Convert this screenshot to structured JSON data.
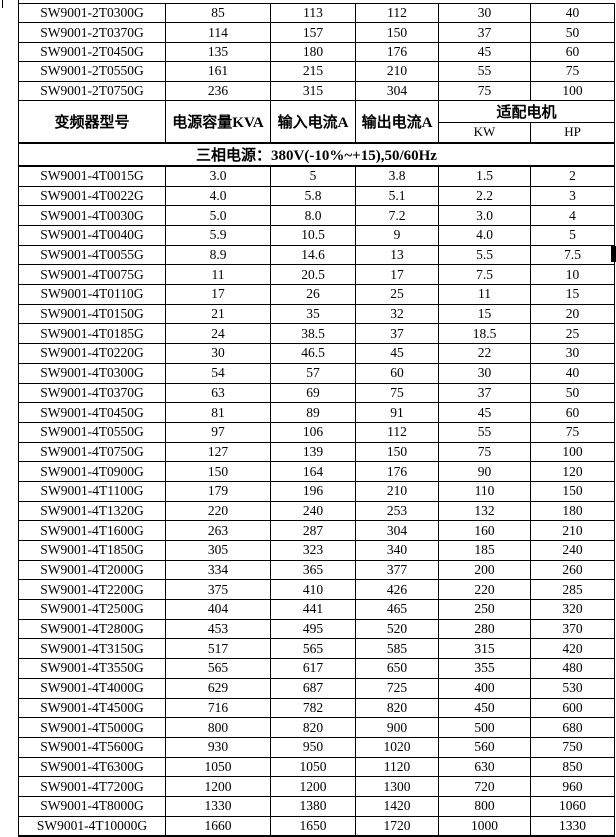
{
  "page": {
    "background_color": "#ffffff",
    "border_color": "#000000",
    "text_color": "#000000"
  },
  "table": {
    "header": {
      "model": "变频器型号",
      "capacity": "电源容量KVA",
      "input": "输入电流A",
      "output": "输出电流A",
      "motor": "适配电机",
      "kw": "KW",
      "hp": "HP"
    },
    "section_title": "三相电源：380V(-10%~+15),50/60Hz",
    "rows_2t": [
      [
        "SW9001-2T0300G",
        "85",
        "113",
        "112",
        "30",
        "40"
      ],
      [
        "SW9001-2T0370G",
        "114",
        "157",
        "150",
        "37",
        "50"
      ],
      [
        "SW9001-2T0450G",
        "135",
        "180",
        "176",
        "45",
        "60"
      ],
      [
        "SW9001-2T0550G",
        "161",
        "215",
        "210",
        "55",
        "75"
      ],
      [
        "SW9001-2T0750G",
        "236",
        "315",
        "304",
        "75",
        "100"
      ]
    ],
    "rows_4t": [
      [
        "SW9001-4T0015G",
        "3.0",
        "5",
        "3.8",
        "1.5",
        "2"
      ],
      [
        "SW9001-4T0022G",
        "4.0",
        "5.8",
        "5.1",
        "2.2",
        "3"
      ],
      [
        "SW9001-4T0030G",
        "5.0",
        "8.0",
        "7.2",
        "3.0",
        "4"
      ],
      [
        "SW9001-4T0040G",
        "5.9",
        "10.5",
        "9",
        "4.0",
        "5"
      ],
      [
        "SW9001-4T0055G",
        "8.9",
        "14.6",
        "13",
        "5.5",
        "7.5"
      ],
      [
        "SW9001-4T0075G",
        "11",
        "20.5",
        "17",
        "7.5",
        "10"
      ],
      [
        "SW9001-4T0110G",
        "17",
        "26",
        "25",
        "11",
        "15"
      ],
      [
        "SW9001-4T0150G",
        "21",
        "35",
        "32",
        "15",
        "20"
      ],
      [
        "SW9001-4T0185G",
        "24",
        "38.5",
        "37",
        "18.5",
        "25"
      ],
      [
        "SW9001-4T0220G",
        "30",
        "46.5",
        "45",
        "22",
        "30"
      ],
      [
        "SW9001-4T0300G",
        "54",
        "57",
        "60",
        "30",
        "40"
      ],
      [
        "SW9001-4T0370G",
        "63",
        "69",
        "75",
        "37",
        "50"
      ],
      [
        "SW9001-4T0450G",
        "81",
        "89",
        "91",
        "45",
        "60"
      ],
      [
        "SW9001-4T0550G",
        "97",
        "106",
        "112",
        "55",
        "75"
      ],
      [
        "SW9001-4T0750G",
        "127",
        "139",
        "150",
        "75",
        "100"
      ],
      [
        "SW9001-4T0900G",
        "150",
        "164",
        "176",
        "90",
        "120"
      ],
      [
        "SW9001-4T1100G",
        "179",
        "196",
        "210",
        "110",
        "150"
      ],
      [
        "SW9001-4T1320G",
        "220",
        "240",
        "253",
        "132",
        "180"
      ],
      [
        "SW9001-4T1600G",
        "263",
        "287",
        "304",
        "160",
        "210"
      ],
      [
        "SW9001-4T1850G",
        "305",
        "323",
        "340",
        "185",
        "240"
      ],
      [
        "SW9001-4T2000G",
        "334",
        "365",
        "377",
        "200",
        "260"
      ],
      [
        "SW9001-4T2200G",
        "375",
        "410",
        "426",
        "220",
        "285"
      ],
      [
        "SW9001-4T2500G",
        "404",
        "441",
        "465",
        "250",
        "320"
      ],
      [
        "SW9001-4T2800G",
        "453",
        "495",
        "520",
        "280",
        "370"
      ],
      [
        "SW9001-4T3150G",
        "517",
        "565",
        "585",
        "315",
        "420"
      ],
      [
        "SW9001-4T3550G",
        "565",
        "617",
        "650",
        "355",
        "480"
      ],
      [
        "SW9001-4T4000G",
        "629",
        "687",
        "725",
        "400",
        "530"
      ],
      [
        "SW9001-4T4500G",
        "716",
        "782",
        "820",
        "450",
        "600"
      ],
      [
        "SW9001-4T5000G",
        "800",
        "820",
        "900",
        "500",
        "680"
      ],
      [
        "SW9001-4T5600G",
        "930",
        "950",
        "1020",
        "560",
        "750"
      ],
      [
        "SW9001-4T6300G",
        "1050",
        "1050",
        "1120",
        "630",
        "850"
      ],
      [
        "SW9001-4T7200G",
        "1200",
        "1200",
        "1300",
        "720",
        "960"
      ],
      [
        "SW9001-4T8000G",
        "1330",
        "1380",
        "1420",
        "800",
        "1060"
      ],
      [
        "SW9001-4T10000G",
        "1660",
        "1650",
        "1720",
        "1000",
        "1330"
      ]
    ]
  }
}
